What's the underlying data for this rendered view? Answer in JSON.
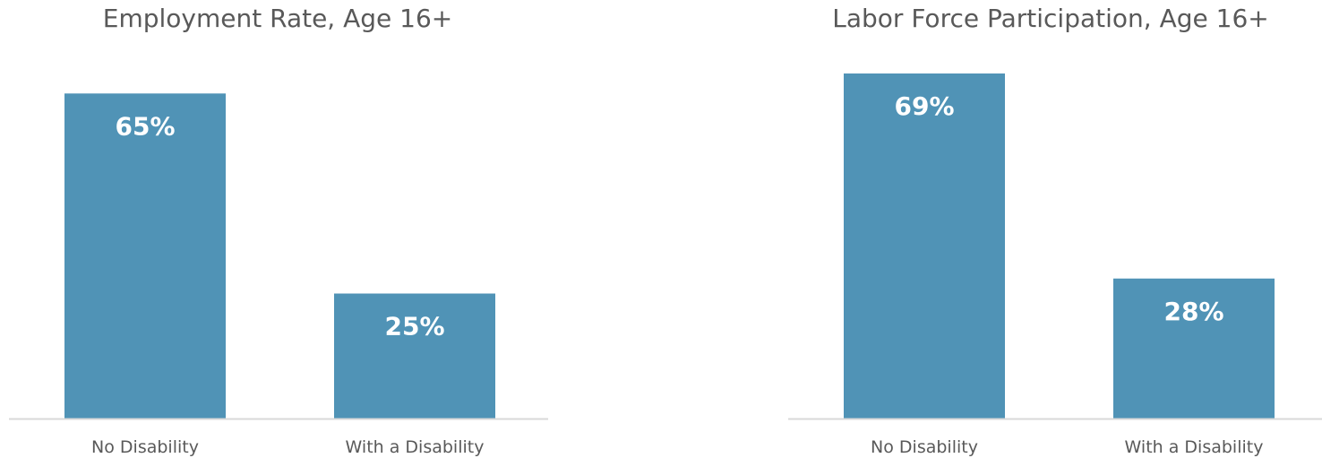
{
  "colors": {
    "bar": "#5093b6",
    "axis": "#d9d9d9",
    "title_text": "#595959",
    "label_text": "#ffffff"
  },
  "chart_data": [
    {
      "type": "bar",
      "title": "Employment Rate, Age 16+",
      "categories": [
        "No Disability",
        "With a Disability"
      ],
      "values": [
        65,
        25
      ],
      "value_labels": [
        "65%",
        "25%"
      ],
      "ylim": [
        0,
        75
      ],
      "grid": false,
      "legend": "none"
    },
    {
      "type": "bar",
      "title": "Labor Force Participation, Age 16+",
      "categories": [
        "No Disability",
        "With a Disability"
      ],
      "values": [
        69,
        28
      ],
      "value_labels": [
        "69%",
        "28%"
      ],
      "ylim": [
        0,
        75
      ],
      "grid": false,
      "legend": "none"
    }
  ]
}
